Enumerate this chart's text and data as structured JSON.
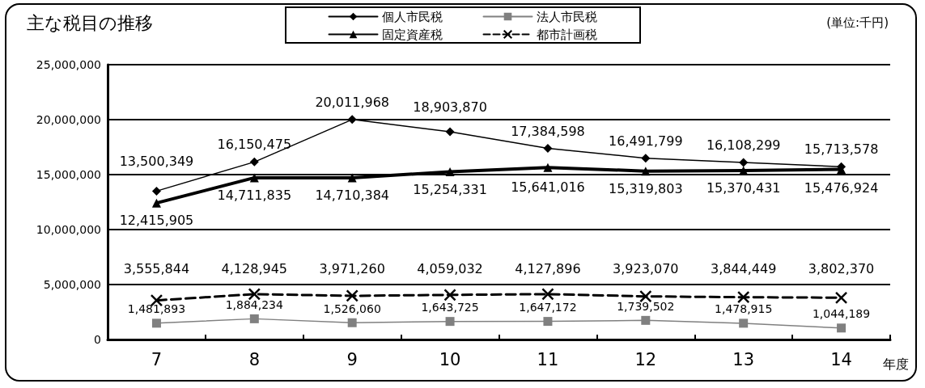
{
  "chart_data": {
    "type": "line",
    "title": "主な税目の推移",
    "xlabel": "年度",
    "annotations": [
      "(単位:千円)"
    ],
    "categories": [
      "7",
      "8",
      "9",
      "10",
      "11",
      "12",
      "13",
      "14"
    ],
    "series": [
      {
        "name": "個人市民税",
        "color": "#000000",
        "marker": "diamond",
        "line_style": "solid",
        "values": [
          13500349,
          16150475,
          20011968,
          18903870,
          17384598,
          16491799,
          16108299,
          15713578
        ],
        "value_labels": [
          "13,500,349",
          "16,150,475",
          "20,011,968",
          "18,903,870",
          "17,384,598",
          "16,491,799",
          "16,108,299",
          "15,713,578"
        ]
      },
      {
        "name": "法人市民税",
        "color": "#808080",
        "marker": "square",
        "line_style": "solid",
        "values": [
          1481893,
          1884234,
          1526060,
          1643725,
          1647172,
          1739502,
          1478915,
          1044189
        ],
        "value_labels": [
          "1,481,893",
          "1,884,234",
          "1,526,060",
          "1,643,725",
          "1,647,172",
          "1,739,502",
          "1,478,915",
          "1,044,189"
        ]
      },
      {
        "name": "固定資産税",
        "color": "#000000",
        "marker": "triangle",
        "line_style": "solid",
        "values": [
          12415905,
          14711835,
          14710384,
          15254331,
          15641016,
          15319803,
          15370431,
          15476924
        ],
        "value_labels": [
          "12,415,905",
          "14,711,835",
          "14,710,384",
          "15,254,331",
          "15,641,016",
          "15,319,803",
          "15,370,431",
          "15,476,924"
        ]
      },
      {
        "name": "都市計画税",
        "color": "#000000",
        "marker": "cross",
        "line_style": "dashed",
        "values": [
          3555844,
          4128945,
          3971260,
          4059032,
          4127896,
          3923070,
          3844449,
          3802370
        ],
        "value_labels": [
          "3,555,844",
          "4,128,945",
          "3,971,260",
          "4,059,032",
          "4,127,896",
          "3,923,070",
          "3,844,449",
          "3,802,370"
        ]
      }
    ],
    "ylim": [
      0,
      25000000
    ],
    "yticks": [
      {
        "value": 0,
        "label": "0"
      },
      {
        "value": 5000000,
        "label": "5,000,000"
      },
      {
        "value": 10000000,
        "label": "10,000,000"
      },
      {
        "value": 15000000,
        "label": "15,000,000"
      },
      {
        "value": 20000000,
        "label": "20,000,000"
      },
      {
        "value": 25000000,
        "label": "25,000,000"
      }
    ],
    "grid": "y",
    "legend": "top"
  }
}
